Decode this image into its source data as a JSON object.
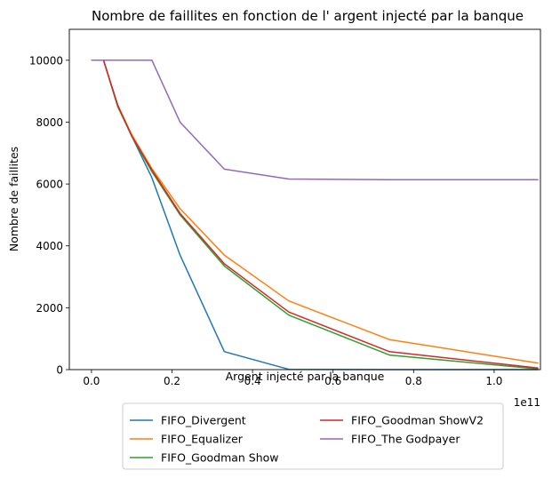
{
  "chart_data": {
    "type": "line",
    "title": "Nombre de faillites en fonction de l' argent injecté par la banque",
    "xlabel": "Argent injecté par la banque",
    "ylabel": "Nombre de faillites",
    "x_offset_label": "1e11",
    "x_scale_exponent": 11,
    "xlim": [
      -0.055,
      1.115
    ],
    "ylim": [
      0,
      11000
    ],
    "x_ticks": [
      0.0,
      0.2,
      0.4,
      0.6,
      0.8,
      1.0
    ],
    "x_tick_labels": [
      "0.0",
      "0.2",
      "0.4",
      "0.6",
      "0.8",
      "1.0"
    ],
    "y_ticks": [
      0,
      2000,
      4000,
      6000,
      8000,
      10000
    ],
    "y_tick_labels": [
      "0",
      "2000",
      "4000",
      "6000",
      "8000",
      "10000"
    ],
    "grid": false,
    "legend_position": "below-center",
    "legend_columns": 2,
    "series": [
      {
        "name": "FIFO_Divergent",
        "color": "#1f77b4",
        "x": [
          0.0,
          0.03,
          0.065,
          0.1,
          0.15,
          0.22,
          0.33,
          0.49,
          0.74,
          1.11
        ],
        "y": [
          10000,
          10000,
          8550,
          7550,
          6200,
          3700,
          580,
          10,
          0,
          0
        ]
      },
      {
        "name": "FIFO_Equalizer",
        "color": "#ff7f0e",
        "x": [
          0.0,
          0.03,
          0.065,
          0.1,
          0.15,
          0.22,
          0.33,
          0.49,
          0.74,
          1.11
        ],
        "y": [
          10000,
          10000,
          8550,
          7600,
          6500,
          5200,
          3700,
          2220,
          970,
          210
        ]
      },
      {
        "name": "FIFO_Goodman Show",
        "color": "#2ca02c",
        "x": [
          0.0,
          0.03,
          0.065,
          0.1,
          0.15,
          0.22,
          0.33,
          0.49,
          0.74,
          1.11
        ],
        "y": [
          10000,
          10000,
          8500,
          7550,
          6400,
          5000,
          3350,
          1760,
          470,
          20
        ]
      },
      {
        "name": "FIFO_Goodman ShowV2",
        "color": "#d62728",
        "x": [
          0.0,
          0.03,
          0.065,
          0.1,
          0.15,
          0.22,
          0.33,
          0.49,
          0.74,
          1.11
        ],
        "y": [
          10000,
          10000,
          8550,
          7550,
          6450,
          5050,
          3420,
          1860,
          580,
          50
        ]
      },
      {
        "name": "FIFO_The Godpayer",
        "color": "#9467bd",
        "x": [
          0.0,
          0.03,
          0.065,
          0.1,
          0.15,
          0.22,
          0.33,
          0.49,
          0.74,
          1.11
        ],
        "y": [
          10000,
          10000,
          10000,
          10000,
          10000,
          8000,
          6480,
          6160,
          6140,
          6140
        ]
      }
    ]
  }
}
